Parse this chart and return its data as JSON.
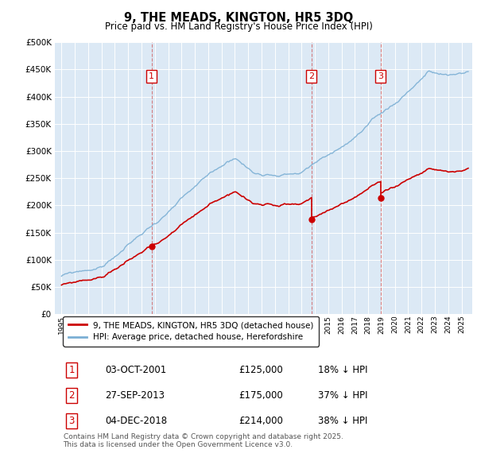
{
  "title": "9, THE MEADS, KINGTON, HR5 3DQ",
  "subtitle": "Price paid vs. HM Land Registry's House Price Index (HPI)",
  "ylim": [
    0,
    500000
  ],
  "xlim_start": 1994.5,
  "xlim_end": 2025.8,
  "sale_color": "#cc0000",
  "hpi_color": "#7bafd4",
  "sale_label": "9, THE MEADS, KINGTON, HR5 3DQ (detached house)",
  "hpi_label": "HPI: Average price, detached house, Herefordshire",
  "transactions": [
    {
      "num": 1,
      "date_str": "03-OCT-2001",
      "date_x": 2001.75,
      "price": 125000,
      "pct": "18%",
      "label": "1"
    },
    {
      "num": 2,
      "date_str": "27-SEP-2013",
      "date_x": 2013.73,
      "price": 175000,
      "pct": "37%",
      "label": "2"
    },
    {
      "num": 3,
      "date_str": "04-DEC-2018",
      "date_x": 2018.92,
      "price": 214000,
      "pct": "38%",
      "label": "3"
    }
  ],
  "footnote": "Contains HM Land Registry data © Crown copyright and database right 2025.\nThis data is licensed under the Open Government Licence v3.0.",
  "background_color": "#dce9f5",
  "grid_color": "#ffffff"
}
